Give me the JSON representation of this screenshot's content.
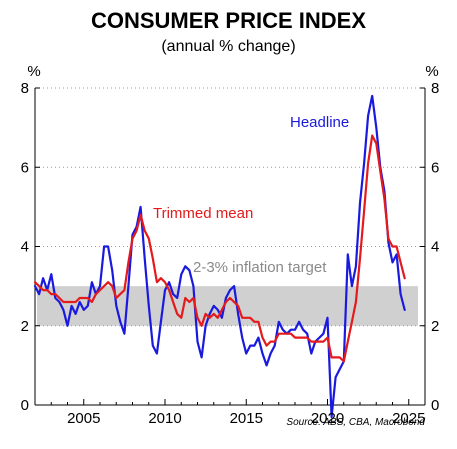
{
  "chart_data": {
    "type": "line",
    "title": "CONSUMER PRICE INDEX",
    "subtitle": "(annual % change)",
    "y_unit_left": "%",
    "y_unit_right": "%",
    "source": "Source: ABS, CBA, Macrobond",
    "xlim": [
      2002,
      2026
    ],
    "ylim": [
      0,
      8
    ],
    "x_ticks": [
      2005,
      2010,
      2015,
      2020,
      2025
    ],
    "y_ticks": [
      0,
      2,
      4,
      6,
      8
    ],
    "grid": "horizontal dotted",
    "target_band": {
      "label": "2-3% inflation target",
      "low": 2,
      "high": 3,
      "color": "#d0d0d0"
    },
    "series": [
      {
        "name": "Headline",
        "color": "#1a1adf",
        "points": [
          [
            2002.0,
            3.0
          ],
          [
            2002.25,
            2.8
          ],
          [
            2002.5,
            3.2
          ],
          [
            2002.75,
            2.9
          ],
          [
            2003.0,
            3.3
          ],
          [
            2003.25,
            2.7
          ],
          [
            2003.5,
            2.6
          ],
          [
            2003.75,
            2.4
          ],
          [
            2004.0,
            2.0
          ],
          [
            2004.25,
            2.5
          ],
          [
            2004.5,
            2.3
          ],
          [
            2004.75,
            2.6
          ],
          [
            2005.0,
            2.4
          ],
          [
            2005.25,
            2.5
          ],
          [
            2005.5,
            3.1
          ],
          [
            2005.75,
            2.8
          ],
          [
            2006.0,
            3.0
          ],
          [
            2006.25,
            4.0
          ],
          [
            2006.5,
            4.0
          ],
          [
            2006.75,
            3.4
          ],
          [
            2007.0,
            2.5
          ],
          [
            2007.25,
            2.1
          ],
          [
            2007.5,
            1.8
          ],
          [
            2007.75,
            3.0
          ],
          [
            2008.0,
            4.3
          ],
          [
            2008.25,
            4.5
          ],
          [
            2008.5,
            5.0
          ],
          [
            2008.75,
            3.7
          ],
          [
            2009.0,
            2.5
          ],
          [
            2009.25,
            1.5
          ],
          [
            2009.5,
            1.3
          ],
          [
            2009.75,
            2.1
          ],
          [
            2010.0,
            2.9
          ],
          [
            2010.25,
            3.1
          ],
          [
            2010.5,
            2.8
          ],
          [
            2010.75,
            2.7
          ],
          [
            2011.0,
            3.3
          ],
          [
            2011.25,
            3.5
          ],
          [
            2011.5,
            3.4
          ],
          [
            2011.75,
            3.0
          ],
          [
            2012.0,
            1.6
          ],
          [
            2012.25,
            1.2
          ],
          [
            2012.5,
            2.0
          ],
          [
            2012.75,
            2.3
          ],
          [
            2013.0,
            2.5
          ],
          [
            2013.25,
            2.4
          ],
          [
            2013.5,
            2.2
          ],
          [
            2013.75,
            2.7
          ],
          [
            2014.0,
            2.9
          ],
          [
            2014.25,
            3.0
          ],
          [
            2014.5,
            2.3
          ],
          [
            2014.75,
            1.7
          ],
          [
            2015.0,
            1.3
          ],
          [
            2015.25,
            1.5
          ],
          [
            2015.5,
            1.5
          ],
          [
            2015.75,
            1.7
          ],
          [
            2016.0,
            1.3
          ],
          [
            2016.25,
            1.0
          ],
          [
            2016.5,
            1.3
          ],
          [
            2016.75,
            1.5
          ],
          [
            2017.0,
            2.1
          ],
          [
            2017.25,
            1.9
          ],
          [
            2017.5,
            1.8
          ],
          [
            2017.75,
            1.9
          ],
          [
            2018.0,
            1.9
          ],
          [
            2018.25,
            2.1
          ],
          [
            2018.5,
            1.9
          ],
          [
            2018.75,
            1.8
          ],
          [
            2019.0,
            1.3
          ],
          [
            2019.25,
            1.6
          ],
          [
            2019.5,
            1.7
          ],
          [
            2019.75,
            1.8
          ],
          [
            2020.0,
            2.2
          ],
          [
            2020.25,
            -0.3
          ],
          [
            2020.5,
            0.7
          ],
          [
            2020.75,
            0.9
          ],
          [
            2021.0,
            1.1
          ],
          [
            2021.25,
            3.8
          ],
          [
            2021.5,
            3.0
          ],
          [
            2021.75,
            3.5
          ],
          [
            2022.0,
            5.1
          ],
          [
            2022.25,
            6.1
          ],
          [
            2022.5,
            7.3
          ],
          [
            2022.75,
            7.8
          ],
          [
            2023.0,
            7.0
          ],
          [
            2023.25,
            6.0
          ],
          [
            2023.5,
            5.4
          ],
          [
            2023.75,
            4.1
          ],
          [
            2024.0,
            3.6
          ],
          [
            2024.25,
            3.8
          ],
          [
            2024.5,
            2.8
          ],
          [
            2024.75,
            2.4
          ]
        ]
      },
      {
        "name": "Trimmed mean",
        "color": "#e41a1c",
        "points": [
          [
            2002.0,
            3.1
          ],
          [
            2002.25,
            3.0
          ],
          [
            2002.5,
            2.9
          ],
          [
            2002.75,
            2.9
          ],
          [
            2003.0,
            2.8
          ],
          [
            2003.25,
            2.8
          ],
          [
            2003.5,
            2.7
          ],
          [
            2003.75,
            2.6
          ],
          [
            2004.0,
            2.6
          ],
          [
            2004.25,
            2.6
          ],
          [
            2004.5,
            2.6
          ],
          [
            2004.75,
            2.7
          ],
          [
            2005.0,
            2.7
          ],
          [
            2005.25,
            2.7
          ],
          [
            2005.5,
            2.6
          ],
          [
            2005.75,
            2.8
          ],
          [
            2006.0,
            2.9
          ],
          [
            2006.25,
            3.0
          ],
          [
            2006.5,
            3.1
          ],
          [
            2006.75,
            3.0
          ],
          [
            2007.0,
            2.7
          ],
          [
            2007.25,
            2.8
          ],
          [
            2007.5,
            2.9
          ],
          [
            2007.75,
            3.6
          ],
          [
            2008.0,
            4.2
          ],
          [
            2008.25,
            4.4
          ],
          [
            2008.5,
            4.8
          ],
          [
            2008.75,
            4.4
          ],
          [
            2009.0,
            4.2
          ],
          [
            2009.25,
            3.7
          ],
          [
            2009.5,
            3.1
          ],
          [
            2009.75,
            3.2
          ],
          [
            2010.0,
            3.1
          ],
          [
            2010.25,
            2.9
          ],
          [
            2010.5,
            2.6
          ],
          [
            2010.75,
            2.3
          ],
          [
            2011.0,
            2.2
          ],
          [
            2011.25,
            2.7
          ],
          [
            2011.5,
            2.6
          ],
          [
            2011.75,
            2.7
          ],
          [
            2012.0,
            2.2
          ],
          [
            2012.25,
            2.0
          ],
          [
            2012.5,
            2.3
          ],
          [
            2012.75,
            2.2
          ],
          [
            2013.0,
            2.3
          ],
          [
            2013.25,
            2.2
          ],
          [
            2013.5,
            2.4
          ],
          [
            2013.75,
            2.6
          ],
          [
            2014.0,
            2.7
          ],
          [
            2014.25,
            2.6
          ],
          [
            2014.5,
            2.5
          ],
          [
            2014.75,
            2.2
          ],
          [
            2015.0,
            2.2
          ],
          [
            2015.25,
            2.2
          ],
          [
            2015.5,
            2.1
          ],
          [
            2015.75,
            2.1
          ],
          [
            2016.0,
            1.7
          ],
          [
            2016.25,
            1.5
          ],
          [
            2016.5,
            1.6
          ],
          [
            2016.75,
            1.6
          ],
          [
            2017.0,
            1.8
          ],
          [
            2017.25,
            1.8
          ],
          [
            2017.5,
            1.8
          ],
          [
            2017.75,
            1.8
          ],
          [
            2018.0,
            1.7
          ],
          [
            2018.25,
            1.7
          ],
          [
            2018.5,
            1.7
          ],
          [
            2018.75,
            1.7
          ],
          [
            2019.0,
            1.6
          ],
          [
            2019.25,
            1.6
          ],
          [
            2019.5,
            1.6
          ],
          [
            2019.75,
            1.6
          ],
          [
            2020.0,
            1.7
          ],
          [
            2020.25,
            1.2
          ],
          [
            2020.5,
            1.2
          ],
          [
            2020.75,
            1.2
          ],
          [
            2021.0,
            1.1
          ],
          [
            2021.25,
            1.6
          ],
          [
            2021.5,
            2.1
          ],
          [
            2021.75,
            2.6
          ],
          [
            2022.0,
            3.7
          ],
          [
            2022.25,
            4.9
          ],
          [
            2022.5,
            6.1
          ],
          [
            2022.75,
            6.8
          ],
          [
            2023.0,
            6.6
          ],
          [
            2023.25,
            5.9
          ],
          [
            2023.5,
            5.2
          ],
          [
            2023.75,
            4.2
          ],
          [
            2024.0,
            4.0
          ],
          [
            2024.25,
            4.0
          ],
          [
            2024.5,
            3.6
          ],
          [
            2024.75,
            3.2
          ]
        ]
      }
    ]
  }
}
